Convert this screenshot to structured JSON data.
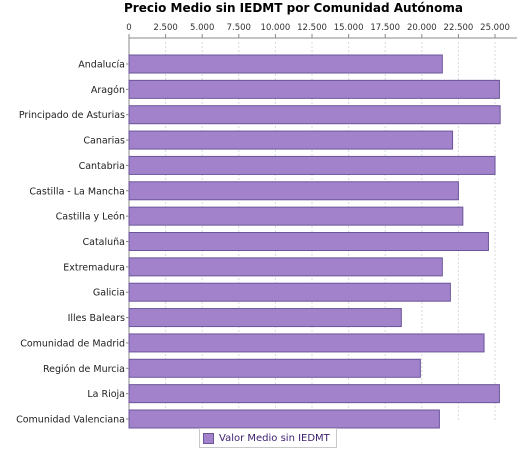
{
  "chart_data": {
    "type": "bar",
    "orientation": "horizontal",
    "title": "Precio Medio sin IEDMT por Comunidad Autónoma",
    "categories": [
      "Andalucía",
      "Aragón",
      "Principado de Asturias",
      "Canarias",
      "Cantabria",
      "Castilla - La Mancha",
      "Castilla y León",
      "Cataluña",
      "Extremadura",
      "Galicia",
      "Illes Balears",
      "Comunidad de Madrid",
      "Región de Murcia",
      "La Rioja",
      "Comunidad Valenciana"
    ],
    "series": [
      {
        "name": "Valor Medio sin IEDMT",
        "values": [
          21400,
          25300,
          25350,
          22100,
          25000,
          22500,
          22800,
          24550,
          21400,
          21950,
          18600,
          24250,
          19900,
          25300,
          21200
        ]
      }
    ],
    "xlim": [
      0,
      26500
    ],
    "x_ticks": [
      "0",
      "2.500",
      "5.000",
      "7.500",
      "10.000",
      "12.500",
      "15.000",
      "17.500",
      "20.000",
      "22.500",
      "25.000"
    ],
    "x_tick_values": [
      0,
      2500,
      5000,
      7500,
      10000,
      12500,
      15000,
      17500,
      20000,
      22500,
      25000
    ],
    "x_axis_position": "top",
    "grid": true,
    "legend_position": "bottom",
    "colors": {
      "bar_fill": "#a283cb",
      "bar_stroke": "#6b559a",
      "grid": "#d9d9d9"
    }
  }
}
